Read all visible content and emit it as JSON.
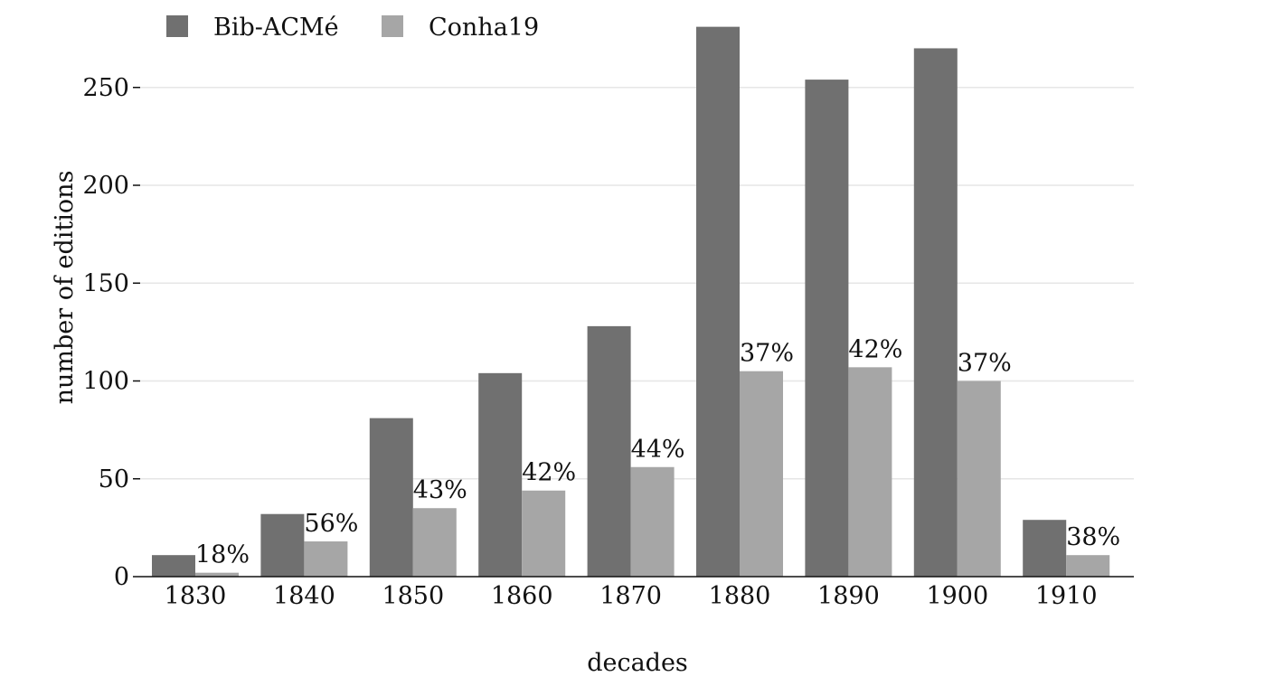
{
  "chart_data": {
    "type": "bar",
    "categories": [
      "1830",
      "1840",
      "1850",
      "1860",
      "1870",
      "1880",
      "1890",
      "1900",
      "1910"
    ],
    "series": [
      {
        "name": "Bib-ACMé",
        "values": [
          11,
          32,
          81,
          104,
          128,
          281,
          254,
          270,
          29
        ],
        "color": "#707070"
      },
      {
        "name": "Conha19",
        "values": [
          2,
          18,
          35,
          44,
          56,
          105,
          107,
          100,
          11
        ],
        "color": "#a6a6a6"
      }
    ],
    "data_labels": [
      "18%",
      "56%",
      "43%",
      "42%",
      "44%",
      "37%",
      "42%",
      "37%",
      "38%"
    ],
    "xlabel": "decades",
    "ylabel": "number of editions",
    "ylim": [
      0,
      280
    ],
    "yticks": [
      0,
      50,
      100,
      150,
      200,
      250
    ],
    "grid": true,
    "legend_position": "top-left"
  }
}
